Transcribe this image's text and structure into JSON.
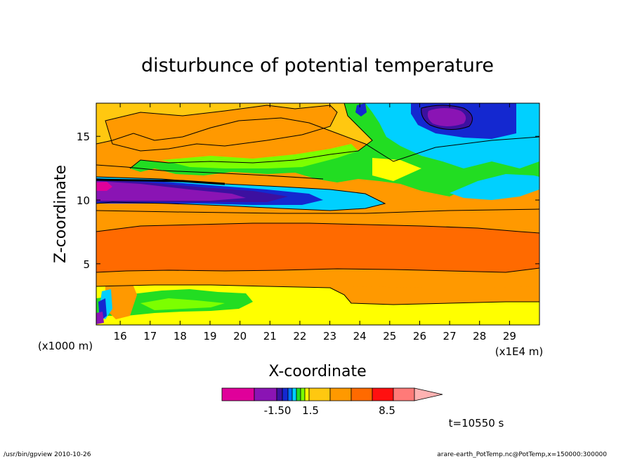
{
  "chart_data": {
    "type": "heatmap",
    "title": "disturbunce of potential temperature",
    "xlabel": "X-coordinate",
    "ylabel": "Z-coordinate",
    "xunit_left": "(x1000 m)",
    "xunit_right": "(x1E4 m)",
    "xlim": [
      15.2,
      30.0
    ],
    "ylim": [
      0.2,
      17.6
    ],
    "xticks": [
      16,
      17,
      18,
      19,
      20,
      21,
      22,
      23,
      24,
      25,
      26,
      27,
      28,
      29
    ],
    "yticks": [
      5,
      10,
      15
    ],
    "time_label": "t=10550 s",
    "footer_left": "/usr/bin/gpview  2010-10-26",
    "footer_right": "arare-earth_PotTemp.nc@PotTemp,x=150000:300000",
    "colorbar": {
      "colors": [
        "#e0009a",
        "#8a14b4",
        "#3c10a0",
        "#1428d0",
        "#0070ff",
        "#00d0ff",
        "#22dd22",
        "#7cff00",
        "#ffff00",
        "#ffc810",
        "#ff9900",
        "#ff6a00",
        "#ff1010",
        "#ff7a78",
        "#ffb2b2"
      ],
      "labels": [
        "-1.50",
        "1.5",
        "8.5"
      ]
    },
    "grid": false
  }
}
